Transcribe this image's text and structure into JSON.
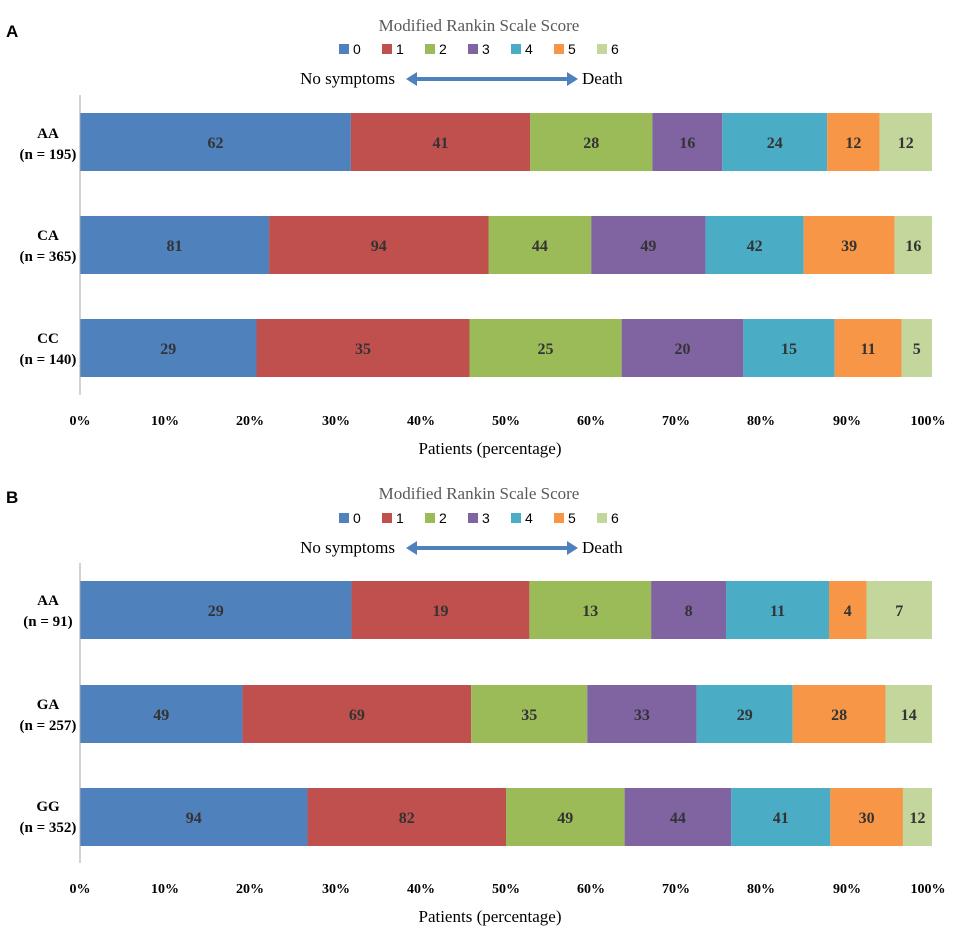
{
  "chart_data": [
    {
      "type": "bar",
      "orientation": "horizontal",
      "stacked": "percent",
      "panel": "A",
      "title": "Modified Rankin Scale Score",
      "annotation_left": "No symptoms",
      "annotation_right": "Death",
      "categories": [
        "AA",
        "CA",
        "CC"
      ],
      "category_counts": [
        "(n = 195)",
        "(n = 365)",
        "(n = 140)"
      ],
      "series": [
        {
          "name": "0",
          "color": "#4f81bd",
          "values": [
            62,
            81,
            29
          ]
        },
        {
          "name": "1",
          "color": "#c0504d",
          "values": [
            41,
            94,
            35
          ]
        },
        {
          "name": "2",
          "color": "#9bbb59",
          "values": [
            28,
            44,
            25
          ]
        },
        {
          "name": "3",
          "color": "#8064a2",
          "values": [
            16,
            49,
            20
          ]
        },
        {
          "name": "4",
          "color": "#4bacc6",
          "values": [
            24,
            42,
            15
          ]
        },
        {
          "name": "5",
          "color": "#f79646",
          "values": [
            12,
            39,
            11
          ]
        },
        {
          "name": "6",
          "color": "#c3d69b",
          "values": [
            12,
            16,
            5
          ]
        }
      ],
      "xlabel": "Patients (percentage)",
      "xticks": [
        "0%",
        "10%",
        "20%",
        "30%",
        "40%",
        "50%",
        "60%",
        "70%",
        "80%",
        "90%",
        "100%"
      ],
      "xlim": [
        0,
        100
      ],
      "legend": "top"
    },
    {
      "type": "bar",
      "orientation": "horizontal",
      "stacked": "percent",
      "panel": "B",
      "title": "Modified Rankin Scale Score",
      "annotation_left": "No symptoms",
      "annotation_right": "Death",
      "categories": [
        "AA",
        "GA",
        "GG"
      ],
      "category_counts": [
        "(n = 91)",
        "(n = 257)",
        "(n = 352)"
      ],
      "series": [
        {
          "name": "0",
          "color": "#4f81bd",
          "values": [
            29,
            49,
            94
          ]
        },
        {
          "name": "1",
          "color": "#c0504d",
          "values": [
            19,
            69,
            82
          ]
        },
        {
          "name": "2",
          "color": "#9bbb59",
          "values": [
            13,
            35,
            49
          ]
        },
        {
          "name": "3",
          "color": "#8064a2",
          "values": [
            8,
            33,
            44
          ]
        },
        {
          "name": "4",
          "color": "#4bacc6",
          "values": [
            11,
            29,
            41
          ]
        },
        {
          "name": "5",
          "color": "#f79646",
          "values": [
            4,
            28,
            30
          ]
        },
        {
          "name": "6",
          "color": "#c3d69b",
          "values": [
            7,
            14,
            12
          ]
        }
      ],
      "xlabel": "Patients (percentage)",
      "xticks": [
        "0%",
        "10%",
        "20%",
        "30%",
        "40%",
        "50%",
        "60%",
        "70%",
        "80%",
        "90%",
        "100%"
      ],
      "xlim": [
        0,
        100
      ],
      "legend": "top"
    }
  ]
}
